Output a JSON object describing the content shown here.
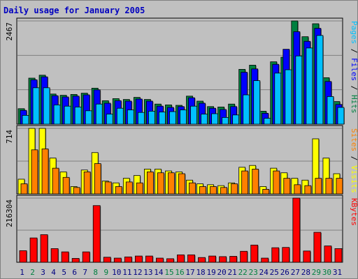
{
  "title": "Daily usage for January 2005",
  "colors": {
    "hits": "#008040",
    "files": "#0000ff",
    "pages": "#00c0ff",
    "visits": "#ffff00",
    "sites": "#ff8000",
    "kbytes": "#ff0000",
    "weekend_label": "#008040",
    "weekday_label": "#000080"
  },
  "chart_data": [
    {
      "type": "bar",
      "panel": "hits-files-pages",
      "ymax_label": "2467",
      "legend": [
        {
          "label": "Hits",
          "color": "#008040"
        },
        {
          "label": "Files",
          "color": "#0000ff"
        },
        {
          "label": "Pages",
          "color": "#00c0ff"
        }
      ],
      "categories": [
        "1",
        "2",
        "3",
        "4",
        "5",
        "6",
        "7",
        "8",
        "9",
        "10",
        "11",
        "12",
        "13",
        "14",
        "15",
        "16",
        "17",
        "18",
        "19",
        "20",
        "21",
        "22",
        "23",
        "24",
        "25",
        "26",
        "27",
        "28",
        "29",
        "30",
        "31"
      ],
      "series": [
        {
          "name": "Hits",
          "values": [
            370,
            1100,
            1170,
            720,
            690,
            710,
            740,
            860,
            560,
            610,
            590,
            640,
            590,
            480,
            460,
            450,
            670,
            550,
            420,
            410,
            480,
            1310,
            1410,
            310,
            1490,
            1600,
            2467,
            2090,
            2400,
            1110,
            540
          ]
        },
        {
          "name": "Files",
          "values": [
            330,
            1060,
            1130,
            680,
            650,
            670,
            700,
            820,
            500,
            560,
            550,
            600,
            550,
            430,
            400,
            420,
            630,
            500,
            380,
            350,
            420,
            1240,
            1320,
            260,
            1430,
            1790,
            2210,
            1980,
            2290,
            1020,
            470
          ]
        },
        {
          "name": "Pages",
          "values": [
            210,
            870,
            870,
            460,
            430,
            410,
            320,
            480,
            240,
            380,
            340,
            280,
            310,
            290,
            300,
            340,
            430,
            240,
            250,
            160,
            220,
            700,
            1040,
            140,
            1220,
            1300,
            1630,
            1820,
            2120,
            660,
            400
          ]
        }
      ],
      "ylim": [
        0,
        2467
      ]
    },
    {
      "type": "bar",
      "panel": "visits-sites",
      "ymax_label": "714",
      "legend": [
        {
          "label": "Visits",
          "color": "#ffff00"
        },
        {
          "label": "Sites",
          "color": "#ff8000"
        }
      ],
      "categories": [
        "1",
        "2",
        "3",
        "4",
        "5",
        "6",
        "7",
        "8",
        "9",
        "10",
        "11",
        "12",
        "13",
        "14",
        "15",
        "16",
        "17",
        "18",
        "19",
        "20",
        "21",
        "22",
        "23",
        "24",
        "25",
        "26",
        "27",
        "28",
        "29",
        "30",
        "31"
      ],
      "series": [
        {
          "name": "Visits",
          "values": [
            160,
            714,
            714,
            390,
            240,
            80,
            260,
            450,
            140,
            120,
            170,
            200,
            270,
            270,
            250,
            240,
            150,
            110,
            100,
            90,
            120,
            290,
            310,
            80,
            280,
            230,
            170,
            150,
            600,
            390,
            220
          ]
        },
        {
          "name": "Sites",
          "values": [
            110,
            480,
            490,
            280,
            180,
            70,
            240,
            330,
            130,
            80,
            130,
            120,
            240,
            230,
            230,
            220,
            120,
            80,
            80,
            70,
            110,
            250,
            270,
            50,
            250,
            170,
            100,
            90,
            170,
            170,
            170
          ]
        }
      ],
      "ylim": [
        0,
        714
      ]
    },
    {
      "type": "bar",
      "panel": "kbytes",
      "ymax_label": "216304",
      "legend": [
        {
          "label": "KBytes",
          "color": "#ff0000"
        }
      ],
      "categories": [
        "1",
        "2",
        "3",
        "4",
        "5",
        "6",
        "7",
        "8",
        "9",
        "10",
        "11",
        "12",
        "13",
        "14",
        "15",
        "16",
        "17",
        "18",
        "19",
        "20",
        "21",
        "22",
        "23",
        "24",
        "25",
        "26",
        "27",
        "28",
        "29",
        "30",
        "31"
      ],
      "series": [
        {
          "name": "KBytes",
          "values": [
            39000,
            82000,
            93000,
            46000,
            35000,
            13000,
            35000,
            191000,
            17000,
            14000,
            18000,
            21000,
            21000,
            14000,
            12000,
            25000,
            25000,
            16000,
            21000,
            19000,
            20000,
            37000,
            58000,
            14000,
            49000,
            50000,
            216304,
            38000,
            101000,
            55000,
            46000
          ]
        }
      ],
      "ylim": [
        0,
        216304
      ]
    }
  ],
  "days": [
    {
      "label": "1",
      "weekend": false
    },
    {
      "label": "2",
      "weekend": true
    },
    {
      "label": "3",
      "weekend": false
    },
    {
      "label": "4",
      "weekend": false
    },
    {
      "label": "5",
      "weekend": false
    },
    {
      "label": "6",
      "weekend": false
    },
    {
      "label": "7",
      "weekend": false
    },
    {
      "label": "8",
      "weekend": true
    },
    {
      "label": "9",
      "weekend": true
    },
    {
      "label": "10",
      "weekend": false
    },
    {
      "label": "11",
      "weekend": false
    },
    {
      "label": "12",
      "weekend": false
    },
    {
      "label": "13",
      "weekend": false
    },
    {
      "label": "14",
      "weekend": false
    },
    {
      "label": "15",
      "weekend": true
    },
    {
      "label": "16",
      "weekend": true
    },
    {
      "label": "17",
      "weekend": false
    },
    {
      "label": "18",
      "weekend": false
    },
    {
      "label": "19",
      "weekend": false
    },
    {
      "label": "20",
      "weekend": false
    },
    {
      "label": "21",
      "weekend": false
    },
    {
      "label": "22",
      "weekend": true
    },
    {
      "label": "23",
      "weekend": true
    },
    {
      "label": "24",
      "weekend": false
    },
    {
      "label": "25",
      "weekend": false
    },
    {
      "label": "26",
      "weekend": false
    },
    {
      "label": "27",
      "weekend": false
    },
    {
      "label": "28",
      "weekend": false
    },
    {
      "label": "29",
      "weekend": true
    },
    {
      "label": "30",
      "weekend": true
    },
    {
      "label": "31",
      "weekend": false
    }
  ]
}
